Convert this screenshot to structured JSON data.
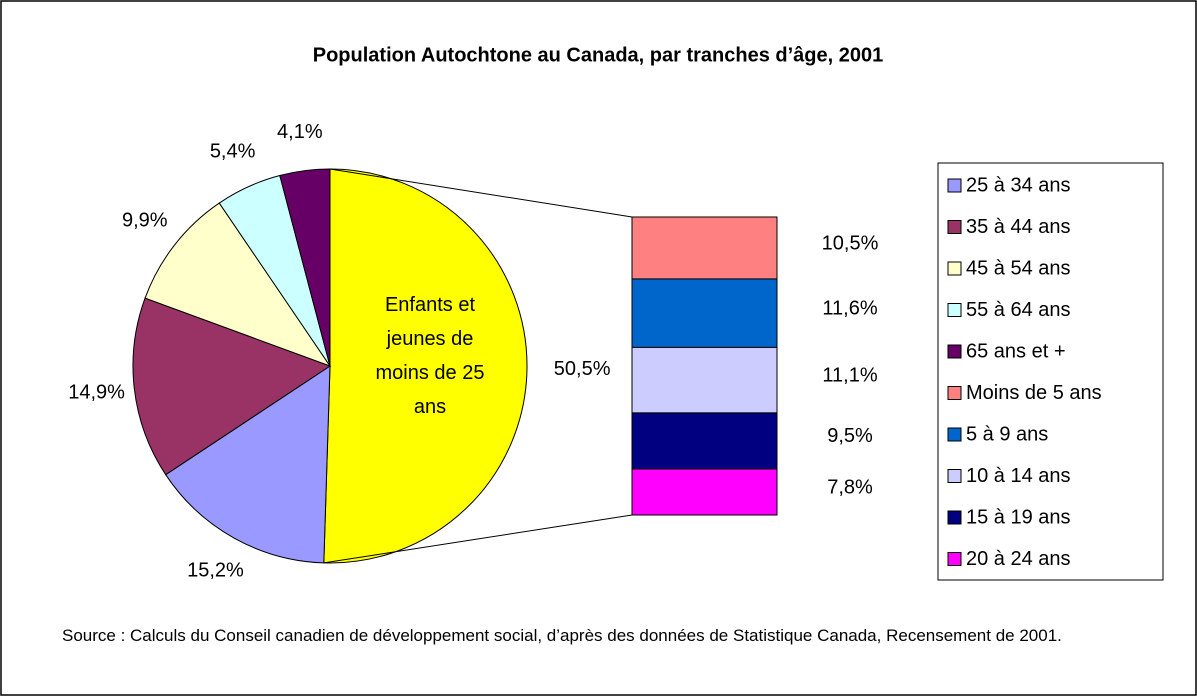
{
  "chart_data": {
    "type": "bar_of_pie",
    "title": "Population Autochtone au Canada, par tranches d’âge, 2001",
    "pie": {
      "categories": [
        "25 à 34 ans",
        "35 à 44 ans",
        "45 à 54 ans",
        "55 à 64 ans",
        "65 ans et +"
      ],
      "values": [
        15.2,
        14.9,
        9.9,
        5.4,
        4.1
      ],
      "value_labels": [
        "15,2%",
        "14,9%",
        "9,9%",
        "5,4%",
        "4,1%"
      ],
      "colors": [
        "#9999ff",
        "#993366",
        "#ffffcc",
        "#ccffff",
        "#660066"
      ]
    },
    "other": {
      "label": "Enfants et jeunes de moins de 25 ans",
      "value": 50.5,
      "value_label": "50,5%",
      "color": "#ffff00"
    },
    "bar": {
      "categories": [
        "Moins de 5 ans",
        "5 à 9 ans",
        "10 à 14 ans",
        "15 à 19 ans",
        "20 à 24 ans"
      ],
      "values": [
        10.5,
        11.6,
        11.1,
        9.5,
        7.8
      ],
      "value_labels": [
        "10,5%",
        "11,6%",
        "11,1%",
        "9,5%",
        "7,8%"
      ],
      "colors": [
        "#ff8080",
        "#0066cc",
        "#ccccff",
        "#000080",
        "#ff00ff"
      ]
    },
    "legend": "right",
    "source": "Source : Calculs du Conseil canadien de développement social, d’après des données de Statistique Canada, Recensement de 2001."
  }
}
